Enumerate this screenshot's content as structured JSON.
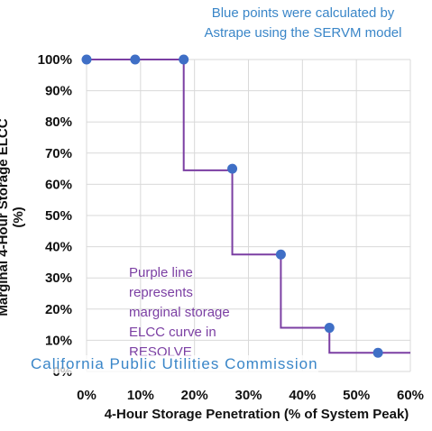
{
  "chart_data": {
    "type": "line",
    "xlabel": "4-Hour Storage Penetration (% of System Peak)",
    "ylabel": "Marginal 4-Hour Storage ELCC (%)",
    "xlim": [
      0,
      60
    ],
    "ylim": [
      0,
      100
    ],
    "x_ticks": [
      "0%",
      "10%",
      "20%",
      "30%",
      "40%",
      "50%",
      "60%"
    ],
    "y_ticks": [
      "0%",
      "10%",
      "20%",
      "30%",
      "40%",
      "50%",
      "60%",
      "70%",
      "80%",
      "90%",
      "100%"
    ],
    "grid": true,
    "series": [
      {
        "kind": "scatter",
        "color": "#3f6fc6",
        "x": [
          0,
          9,
          18,
          27,
          36,
          45,
          54
        ],
        "y": [
          100,
          100,
          100,
          65,
          37.5,
          14,
          6
        ]
      },
      {
        "kind": "step",
        "color": "#7b3fa3",
        "steps": [
          {
            "x_start": 0,
            "x_end": 18,
            "y": 100
          },
          {
            "x_start": 18,
            "x_end": 27,
            "y": 64.5
          },
          {
            "x_start": 27,
            "x_end": 36,
            "y": 37.5
          },
          {
            "x_start": 36,
            "x_end": 45,
            "y": 14
          },
          {
            "x_start": 45,
            "x_end": 60,
            "y": 6
          }
        ]
      }
    ]
  },
  "annotations": {
    "blue_note": [
      "Blue points were calculated by",
      "Astrape using the SERVM model"
    ],
    "purple_note": [
      "Purple line",
      "represents",
      "marginal storage",
      "ELCC curve in",
      "RESOLVE"
    ]
  },
  "footer": "California Public Utilities Commission",
  "colors": {
    "grid": "#d9d9d9",
    "point": "#3f6fc6",
    "step_line": "#7b3fa3",
    "blue_text": "#3a86c8",
    "purple_text": "#7b3fa3"
  }
}
